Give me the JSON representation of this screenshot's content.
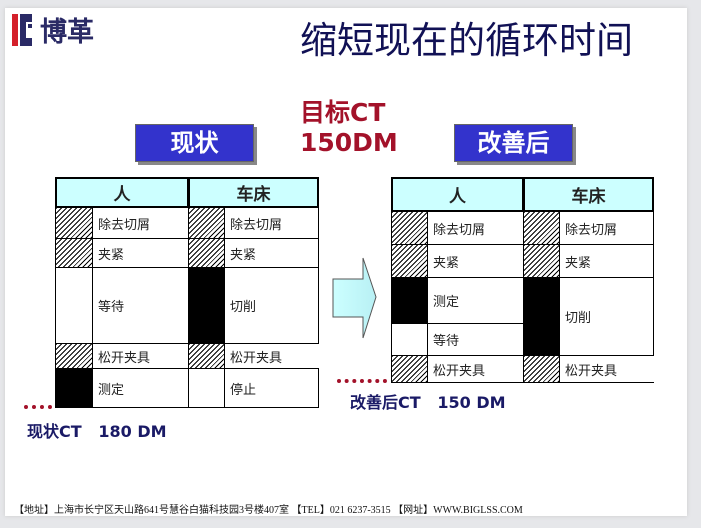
{
  "logo": {
    "text": "博革"
  },
  "title": "缩短现在的循环时间",
  "target": {
    "line1": "目标CT",
    "line2": "150DM"
  },
  "current": {
    "tag": "现状",
    "headers": [
      "人",
      "车床"
    ],
    "person": [
      "除去切屑",
      "夹紧",
      "等待",
      "松开夹具",
      "测定"
    ],
    "machine": [
      "除去切屑",
      "夹紧",
      "切削",
      "松开夹具",
      "停止"
    ],
    "ct_label": "现状CT",
    "ct_value": "180 DM"
  },
  "improved": {
    "tag": "改善后",
    "headers": [
      "人",
      "车床"
    ],
    "person": [
      "除去切屑",
      "夹紧",
      "测定",
      "等待",
      "松开夹具"
    ],
    "machine": [
      "除去切屑",
      "夹紧",
      "切削",
      "松开夹具"
    ],
    "ct_label": "改善后CT",
    "ct_value": "150 DM"
  },
  "footer": "【地址】上海市长宁区天山路641号慧谷白猫科技园3号楼407室 【TEL】021 6237-3515 【网址】WWW.BIGLSS.COM",
  "colors": {
    "accent_red": "#a3122a",
    "tag_blue": "#3333cc",
    "header_cyan": "#ccffff",
    "title_navy": "#111155"
  }
}
